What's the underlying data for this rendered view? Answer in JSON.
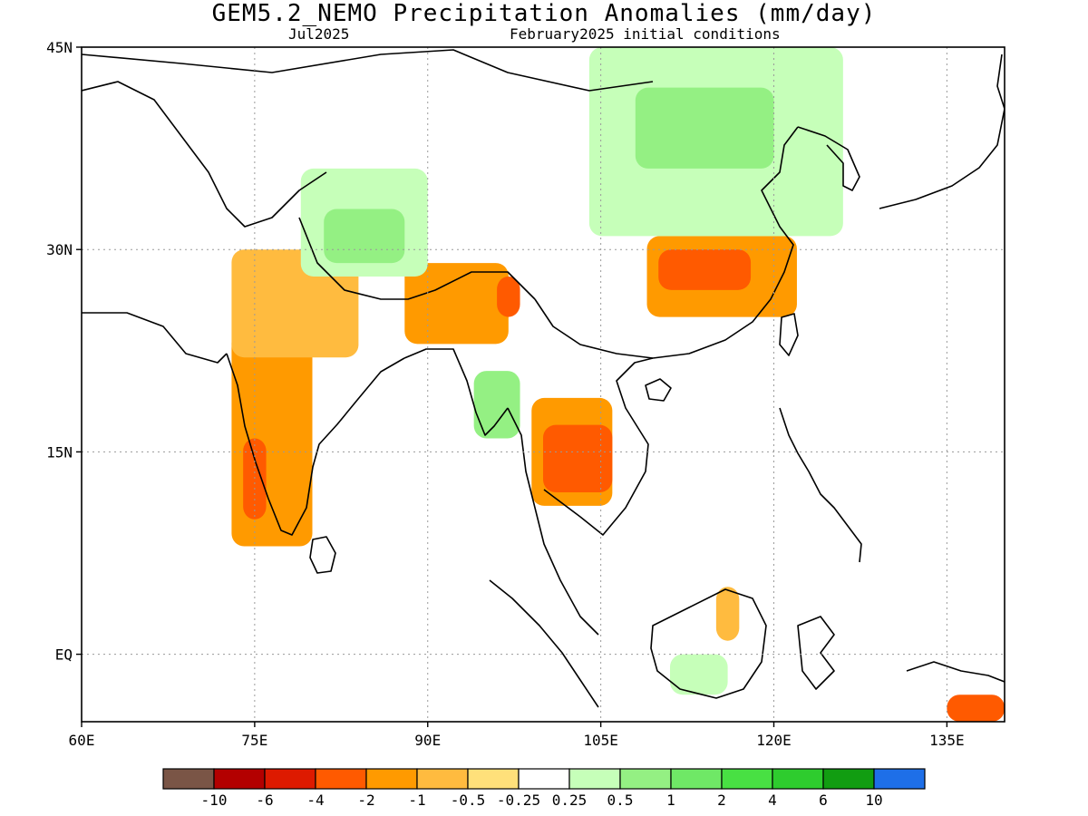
{
  "title": "GEM5.2_NEMO Precipitation Anomalies (mm/day)",
  "subtitle_left": "Jul2025",
  "subtitle_right": "February2025 initial conditions",
  "map": {
    "lon_range": [
      60,
      140
    ],
    "lat_range": [
      -5,
      45
    ],
    "lon_ticks": [
      {
        "value": 60,
        "label": "60E"
      },
      {
        "value": 75,
        "label": "75E"
      },
      {
        "value": 90,
        "label": "90E"
      },
      {
        "value": 105,
        "label": "105E"
      },
      {
        "value": 120,
        "label": "120E"
      },
      {
        "value": 135,
        "label": "135E"
      }
    ],
    "lat_ticks": [
      {
        "value": 45,
        "label": "45N"
      },
      {
        "value": 30,
        "label": "30N"
      },
      {
        "value": 15,
        "label": "15N"
      },
      {
        "value": 0,
        "label": "EQ"
      }
    ],
    "grid": "dotted"
  },
  "colorbar": {
    "colors": [
      "#7a5546",
      "#b30000",
      "#dd1a00",
      "#ff5a00",
      "#ff9a00",
      "#ffbb3f",
      "#ffe07a",
      "#ffffff",
      "#c6ffb9",
      "#94f083",
      "#6fe866",
      "#48e043",
      "#2ecc2e",
      "#119d11",
      "#1e6fe8"
    ],
    "labels": [
      "-10",
      "-6",
      "-4",
      "-2",
      "-1",
      "-0.5",
      "-0.25",
      "0.25",
      "0.5",
      "1",
      "2",
      "4",
      "6",
      "10"
    ]
  },
  "chart_data": {
    "type": "heatmap",
    "title": "GEM5.2_NEMO Precipitation Anomalies (mm/day)",
    "subtitle": "Jul2025 / February2025 initial conditions",
    "units": "mm/day",
    "x_range": [
      60,
      140
    ],
    "y_range": [
      -5,
      45
    ],
    "regions": [
      {
        "lon": [
          73,
          80
        ],
        "lat": [
          8,
          24
        ],
        "value": -1
      },
      {
        "lon": [
          73,
          84
        ],
        "lat": [
          22,
          30
        ],
        "value": -0.5
      },
      {
        "lon": [
          74,
          76
        ],
        "lat": [
          10,
          16
        ],
        "value": -2
      },
      {
        "lon": [
          88,
          97
        ],
        "lat": [
          23,
          29
        ],
        "value": -1
      },
      {
        "lon": [
          96,
          98
        ],
        "lat": [
          25,
          28
        ],
        "value": -2
      },
      {
        "lon": [
          109,
          122
        ],
        "lat": [
          25,
          31
        ],
        "value": -1
      },
      {
        "lon": [
          110,
          118
        ],
        "lat": [
          27,
          30
        ],
        "value": -2
      },
      {
        "lon": [
          99,
          106
        ],
        "lat": [
          11,
          19
        ],
        "value": -1
      },
      {
        "lon": [
          100,
          106
        ],
        "lat": [
          12,
          17
        ],
        "value": -2
      },
      {
        "lon": [
          115,
          117
        ],
        "lat": [
          1,
          5
        ],
        "value": -0.5
      },
      {
        "lon": [
          135,
          140
        ],
        "lat": [
          -5,
          -3
        ],
        "value": -2
      },
      {
        "lon": [
          79,
          90
        ],
        "lat": [
          28,
          36
        ],
        "value": 0.5
      },
      {
        "lon": [
          81,
          88
        ],
        "lat": [
          29,
          33
        ],
        "value": 1
      },
      {
        "lon": [
          94,
          98
        ],
        "lat": [
          16,
          21
        ],
        "value": 1
      },
      {
        "lon": [
          104,
          126
        ],
        "lat": [
          31,
          45
        ],
        "value": 0.5
      },
      {
        "lon": [
          108,
          120
        ],
        "lat": [
          36,
          42
        ],
        "value": 1
      },
      {
        "lon": [
          111,
          116
        ],
        "lat": [
          -3,
          0
        ],
        "value": 0.5
      }
    ]
  }
}
